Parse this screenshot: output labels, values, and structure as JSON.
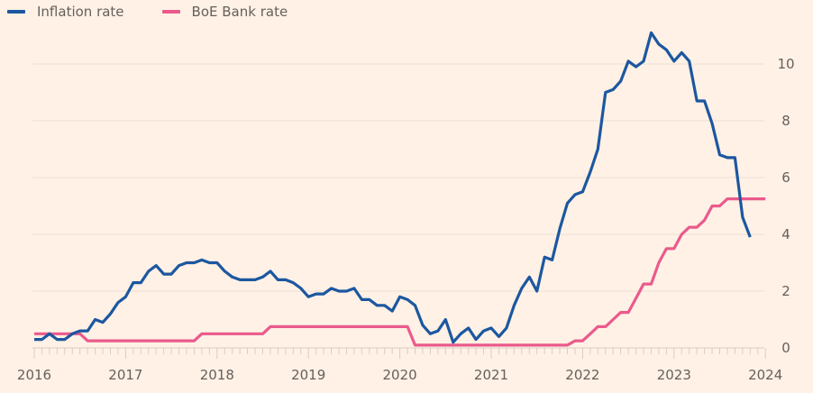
{
  "colors": {
    "background": "#fff1e5",
    "inflation": "#1c57a0",
    "bank_rate": "#ea5a8c",
    "grid": "#ecdfd4",
    "axis": "#d9cdc2",
    "tick_label": "#66605c"
  },
  "chart_data": {
    "type": "line",
    "title": "",
    "xlabel": "",
    "ylabel": "",
    "x_start": "2016-01",
    "x_ticks": [
      "2016",
      "2017",
      "2018",
      "2019",
      "2020",
      "2021",
      "2022",
      "2023",
      "2024"
    ],
    "xlim": [
      "2016-01",
      "2024-01"
    ],
    "y_ticks": [
      "0",
      "2",
      "4",
      "6",
      "8",
      "10"
    ],
    "ylim": [
      0,
      11.2
    ],
    "y_axis_side": "right",
    "grid": true,
    "legend": "top-left",
    "series": [
      {
        "name": "Inflation rate",
        "color_key": "inflation",
        "values": [
          0.3,
          0.3,
          0.5,
          0.3,
          0.3,
          0.5,
          0.6,
          0.6,
          1.0,
          0.9,
          1.2,
          1.6,
          1.8,
          2.3,
          2.3,
          2.7,
          2.9,
          2.6,
          2.6,
          2.9,
          3.0,
          3.0,
          3.1,
          3.0,
          3.0,
          2.7,
          2.5,
          2.4,
          2.4,
          2.4,
          2.5,
          2.7,
          2.4,
          2.4,
          2.3,
          2.1,
          1.8,
          1.9,
          1.9,
          2.1,
          2.0,
          2.0,
          2.1,
          1.7,
          1.7,
          1.5,
          1.5,
          1.3,
          1.8,
          1.7,
          1.5,
          0.8,
          0.5,
          0.6,
          1.0,
          0.2,
          0.5,
          0.7,
          0.3,
          0.6,
          0.7,
          0.4,
          0.7,
          1.5,
          2.1,
          2.5,
          2.0,
          3.2,
          3.1,
          4.2,
          5.1,
          5.4,
          5.5,
          6.2,
          7.0,
          9.0,
          9.1,
          9.4,
          10.1,
          9.9,
          10.1,
          11.1,
          10.7,
          10.5,
          10.1,
          10.4,
          10.1,
          8.7,
          8.7,
          7.9,
          6.8,
          6.7,
          6.7,
          4.6,
          3.9
        ]
      },
      {
        "name": "BoE Bank rate",
        "color_key": "bank_rate",
        "values": [
          0.5,
          0.5,
          0.5,
          0.5,
          0.5,
          0.5,
          0.5,
          0.25,
          0.25,
          0.25,
          0.25,
          0.25,
          0.25,
          0.25,
          0.25,
          0.25,
          0.25,
          0.25,
          0.25,
          0.25,
          0.25,
          0.25,
          0.5,
          0.5,
          0.5,
          0.5,
          0.5,
          0.5,
          0.5,
          0.5,
          0.5,
          0.75,
          0.75,
          0.75,
          0.75,
          0.75,
          0.75,
          0.75,
          0.75,
          0.75,
          0.75,
          0.75,
          0.75,
          0.75,
          0.75,
          0.75,
          0.75,
          0.75,
          0.75,
          0.75,
          0.1,
          0.1,
          0.1,
          0.1,
          0.1,
          0.1,
          0.1,
          0.1,
          0.1,
          0.1,
          0.1,
          0.1,
          0.1,
          0.1,
          0.1,
          0.1,
          0.1,
          0.1,
          0.1,
          0.1,
          0.1,
          0.25,
          0.25,
          0.5,
          0.75,
          0.75,
          1.0,
          1.25,
          1.25,
          1.75,
          2.25,
          2.25,
          3.0,
          3.5,
          3.5,
          4.0,
          4.25,
          4.25,
          4.5,
          5.0,
          5.0,
          5.25,
          5.25,
          5.25,
          5.25,
          5.25,
          5.25
        ]
      }
    ]
  }
}
